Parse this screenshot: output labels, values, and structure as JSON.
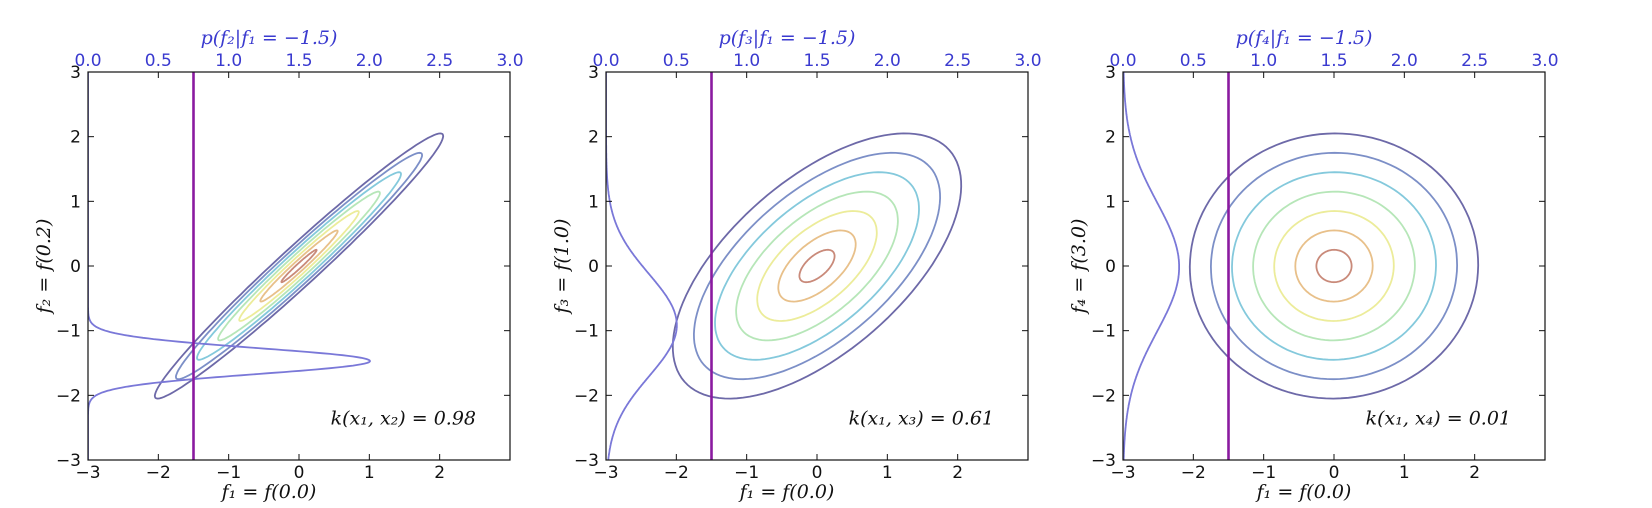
{
  "colors": {
    "axis": "#111111",
    "top_axis": "#3a3acf",
    "conditioning_line": "#8a1aa0",
    "conditional_density": "#7a78d8",
    "contour_levels": [
      "#6d69a8",
      "#7c8fc7",
      "#84c9dc",
      "#b6e6b8",
      "#ecec9a",
      "#e8c08a",
      "#c98a7a",
      "#8c4d6a"
    ]
  },
  "chart_data": [
    {
      "type": "contour",
      "xlabel": "f₁ = f(0.0)",
      "ylabel": "f₂ = f(0.2)",
      "top_label": "p(f₂|f₁ = −1.5)",
      "annotation": "k(x₁, x₂) = 0.98",
      "correlation": 0.98,
      "conditioning_value": -1.5,
      "xlim": [
        -3,
        3
      ],
      "ylim": [
        -3,
        3
      ],
      "top_xlim": [
        0,
        3
      ],
      "x_ticks": [
        "−3",
        "−2",
        "−1",
        "0",
        "1",
        "2"
      ],
      "y_ticks": [
        "−3",
        "−2",
        "−1",
        "0",
        "1",
        "2",
        "3"
      ],
      "top_ticks": [
        "0.0",
        "0.5",
        "1.0",
        "1.5",
        "2.0",
        "2.5",
        "3.0"
      ],
      "x_tick_values": [
        -3,
        -2,
        -1,
        0,
        1,
        2
      ],
      "y_tick_values": [
        -3,
        -2,
        -1,
        0,
        1,
        2,
        3
      ],
      "top_tick_values": [
        0,
        0.5,
        1,
        1.5,
        2,
        2.5,
        3
      ],
      "contour_levels": 7
    },
    {
      "type": "contour",
      "xlabel": "f₁ = f(0.0)",
      "ylabel": "f₃ = f(1.0)",
      "top_label": "p(f₃|f₁ = −1.5)",
      "annotation": "k(x₁, x₃) = 0.61",
      "correlation": 0.61,
      "conditioning_value": -1.5,
      "xlim": [
        -3,
        3
      ],
      "ylim": [
        -3,
        3
      ],
      "top_xlim": [
        0,
        3
      ],
      "x_ticks": [
        "−3",
        "−2",
        "−1",
        "0",
        "1",
        "2"
      ],
      "y_ticks": [
        "−3",
        "−2",
        "−1",
        "0",
        "1",
        "2",
        "3"
      ],
      "top_ticks": [
        "0.0",
        "0.5",
        "1.0",
        "1.5",
        "2.0",
        "2.5",
        "3.0"
      ],
      "x_tick_values": [
        -3,
        -2,
        -1,
        0,
        1,
        2
      ],
      "y_tick_values": [
        -3,
        -2,
        -1,
        0,
        1,
        2,
        3
      ],
      "top_tick_values": [
        0,
        0.5,
        1,
        1.5,
        2,
        2.5,
        3
      ],
      "contour_levels": 7
    },
    {
      "type": "contour",
      "xlabel": "f₁ = f(0.0)",
      "ylabel": "f₄ = f(3.0)",
      "top_label": "p(f₄|f₁ = −1.5)",
      "annotation": "k(x₁, x₄) = 0.01",
      "correlation": 0.01,
      "conditioning_value": -1.5,
      "xlim": [
        -3,
        3
      ],
      "ylim": [
        -3,
        3
      ],
      "top_xlim": [
        0,
        3
      ],
      "x_ticks": [
        "−3",
        "−2",
        "−1",
        "0",
        "1",
        "2"
      ],
      "y_ticks": [
        "−3",
        "−2",
        "−1",
        "0",
        "1",
        "2",
        "3"
      ],
      "top_ticks": [
        "0.0",
        "0.5",
        "1.0",
        "1.5",
        "2.0",
        "2.5",
        "3.0"
      ],
      "x_tick_values": [
        -3,
        -2,
        -1,
        0,
        1,
        2
      ],
      "y_tick_values": [
        -3,
        -2,
        -1,
        0,
        1,
        2,
        3
      ],
      "top_tick_values": [
        0,
        0.5,
        1,
        1.5,
        2,
        2.5,
        3
      ],
      "contour_levels": 7
    }
  ]
}
